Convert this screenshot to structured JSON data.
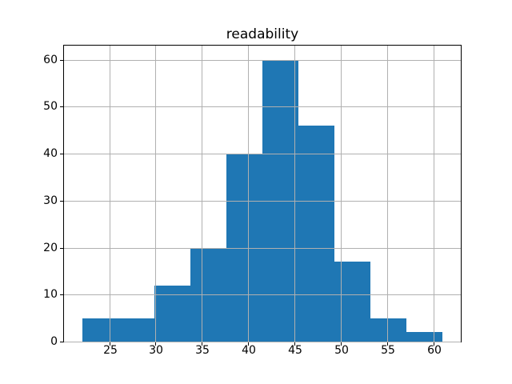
{
  "figure": {
    "background": "#ffffff"
  },
  "chart_data": {
    "type": "bar",
    "chart_kind": "histogram",
    "title": "readability",
    "xlabel": "",
    "ylabel": "",
    "bin_edges": [
      22.07,
      25.96,
      29.86,
      33.75,
      37.64,
      41.54,
      45.43,
      49.33,
      53.22,
      57.12,
      61.01
    ],
    "counts": [
      5,
      5,
      12,
      20,
      40,
      60,
      46,
      17,
      5,
      2
    ],
    "xlim": [
      20.12,
      62.96
    ],
    "ylim": [
      0,
      63
    ],
    "xticks": [
      25,
      30,
      35,
      40,
      45,
      50,
      55,
      60
    ],
    "yticks": [
      0,
      10,
      20,
      30,
      40,
      50,
      60
    ],
    "grid": true,
    "legend": "none",
    "bar_color": "#1f77b4",
    "grid_color": "#b0b0b0",
    "spine_color": "#000000",
    "text_color": "#000000"
  }
}
